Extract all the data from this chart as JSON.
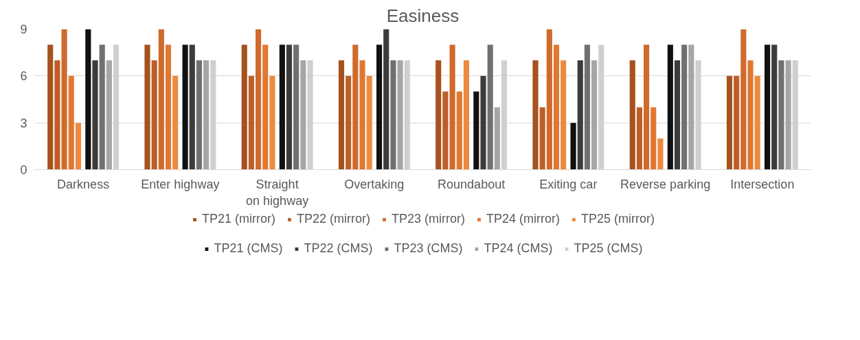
{
  "chart_data": {
    "type": "bar",
    "title": "Easiness",
    "categories": [
      "Darkness",
      "Enter highway",
      "Straight on highway",
      "Overtaking",
      "Roundabout",
      "Exiting car",
      "Reverse parking",
      "Intersection"
    ],
    "series": [
      {
        "name": "TP21 (mirror)",
        "color": "#a5521f",
        "values": [
          8,
          8,
          8,
          7,
          7,
          7,
          7,
          6
        ]
      },
      {
        "name": "TP22 (mirror)",
        "color": "#bd5f28",
        "values": [
          7,
          7,
          6,
          6,
          5,
          4,
          4,
          6
        ]
      },
      {
        "name": "TP23 (mirror)",
        "color": "#d06a2b",
        "values": [
          9,
          9,
          9,
          8,
          8,
          9,
          8,
          9
        ]
      },
      {
        "name": "TP24 (mirror)",
        "color": "#e07832",
        "values": [
          6,
          8,
          8,
          7,
          5,
          8,
          4,
          7
        ]
      },
      {
        "name": "TP25 (mirror)",
        "color": "#ee8a3e",
        "values": [
          3,
          6,
          6,
          6,
          7,
          7,
          2,
          6
        ]
      },
      {
        "name": "TP21 (CMS)",
        "color": "#111111",
        "values": [
          9,
          8,
          8,
          8,
          5,
          3,
          8,
          8
        ]
      },
      {
        "name": "TP22 (CMS)",
        "color": "#3c3c3c",
        "values": [
          7,
          8,
          8,
          9,
          6,
          7,
          7,
          8
        ]
      },
      {
        "name": "TP23 (CMS)",
        "color": "#707070",
        "values": [
          8,
          7,
          8,
          7,
          8,
          8,
          8,
          7
        ]
      },
      {
        "name": "TP24 (CMS)",
        "color": "#a6a6a6",
        "values": [
          7,
          7,
          7,
          7,
          4,
          7,
          8,
          7
        ]
      },
      {
        "name": "TP25 (CMS)",
        "color": "#d0cfd0",
        "values": [
          8,
          7,
          7,
          7,
          7,
          8,
          7,
          7
        ]
      }
    ],
    "ylim": [
      0,
      9
    ],
    "yticks": [
      0,
      3,
      6,
      9
    ],
    "grid": "y",
    "legend": "bottom"
  }
}
